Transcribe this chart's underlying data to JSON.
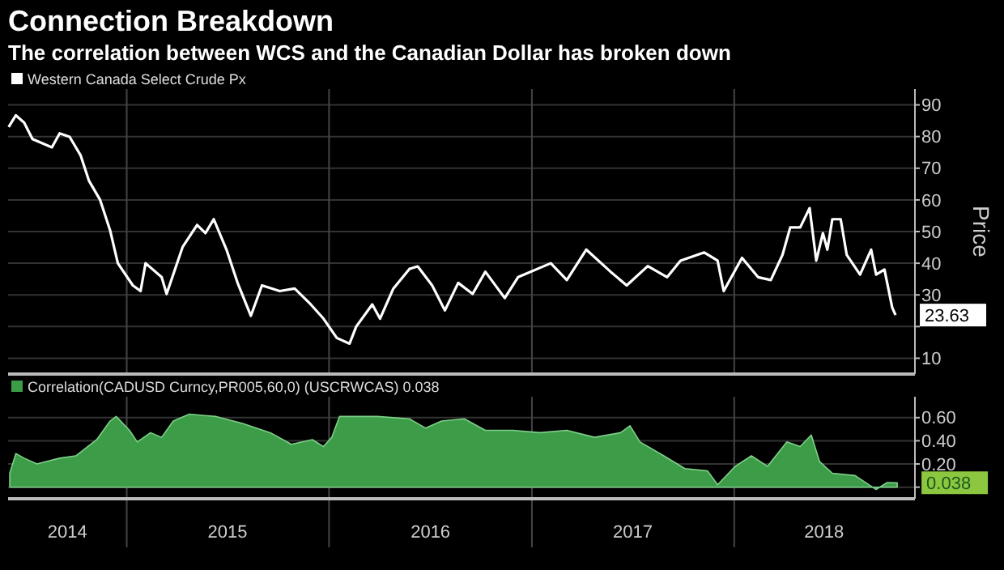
{
  "chart_data": [
    {
      "type": "line",
      "title": "Connection Breakdown",
      "subtitle": "The correlation between WCS and the Canadian Dollar has broken down",
      "ylabel": "Price",
      "legend": "top left",
      "grid": true,
      "tick_labels": "y",
      "xlim": [
        "2014-06-01",
        "2018-11-23"
      ],
      "ylim": [
        5,
        95
      ],
      "yticks": [
        10,
        {
          "value": 20,
          "label": null
        },
        30,
        40,
        50,
        60,
        70,
        80,
        90
      ],
      "xticks": [
        {
          "value": "2015-01-01",
          "label": null
        },
        {
          "value": "2016-01-01",
          "label": null
        },
        {
          "value": "2017-01-01",
          "label": null
        },
        {
          "value": "2018-01-01",
          "label": null
        }
      ],
      "series": [
        {
          "name": "Western Canada Select Crude Px",
          "color": "#ffffff",
          "x": [
            "2014-06-02",
            "2014-06-15",
            "2014-06-30",
            "2014-07-15",
            "2014-08-19",
            "2014-09-02",
            "2014-09-20",
            "2014-10-10",
            "2014-10-25",
            "2014-11-14",
            "2014-12-02",
            "2014-12-16",
            "2015-01-12",
            "2015-01-26",
            "2015-02-04",
            "2015-03-05",
            "2015-03-14",
            "2015-04-12",
            "2015-05-08",
            "2015-05-23",
            "2015-06-07",
            "2015-06-30",
            "2015-07-20",
            "2015-08-13",
            "2015-09-02",
            "2015-10-04",
            "2015-10-31",
            "2015-11-29",
            "2015-12-22",
            "2016-01-15",
            "2016-02-07",
            "2016-02-19",
            "2016-03-19",
            "2016-04-02",
            "2016-04-26",
            "2016-05-25",
            "2016-06-09",
            "2016-07-05",
            "2016-07-28",
            "2016-08-21",
            "2016-09-16",
            "2016-10-09",
            "2016-11-13",
            "2016-12-07",
            "2017-02-04",
            "2017-03-05",
            "2017-04-09",
            "2017-05-23",
            "2017-06-21",
            "2017-07-29",
            "2017-09-02",
            "2017-09-26",
            "2017-11-08",
            "2017-12-02",
            "2017-12-13",
            "2018-01-15",
            "2018-02-13",
            "2018-03-08",
            "2018-03-29",
            "2018-04-12",
            "2018-04-30",
            "2018-05-17",
            "2018-05-29",
            "2018-06-10",
            "2018-06-18",
            "2018-06-27",
            "2018-07-12",
            "2018-07-23",
            "2018-08-16",
            "2018-09-05",
            "2018-09-14",
            "2018-09-29",
            "2018-10-13",
            "2018-10-19"
          ],
          "values": [
            83,
            86.7,
            84.4,
            79.2,
            76.6,
            81,
            79.9,
            74,
            66,
            60,
            50.4,
            40,
            33,
            31.2,
            40,
            35.6,
            30.3,
            45.2,
            52.1,
            49.5,
            53.9,
            44.3,
            33.8,
            23.4,
            33,
            31.2,
            32,
            27,
            22.5,
            16.4,
            14.6,
            20,
            27,
            22.5,
            32,
            38.2,
            39,
            33,
            25.1,
            33.8,
            30.3,
            37.3,
            29,
            35.6,
            40,
            34.7,
            44.3,
            37.3,
            33,
            39.1,
            35.6,
            40.8,
            43.4,
            40.8,
            31.2,
            41.7,
            35.6,
            34.7,
            42.6,
            51.3,
            51.3,
            57.4,
            40.8,
            49.5,
            44.3,
            53.9,
            53.9,
            42.6,
            36.4,
            44.3,
            36.4,
            38,
            26,
            23.63
          ]
        }
      ],
      "annotations": [
        {
          "text": "23.63",
          "x": "2018-10-19",
          "y": 23.63
        }
      ]
    },
    {
      "type": "area",
      "legend": "top left",
      "grid": true,
      "xlim": [
        "2014-06-01",
        "2018-11-23"
      ],
      "ylim": [
        -0.1,
        0.78
      ],
      "yticks": [
        {
          "value": 0,
          "label": null
        },
        {
          "value": 0.2,
          "label": "0.20"
        },
        {
          "value": 0.4,
          "label": "0.40"
        },
        {
          "value": 0.6,
          "label": "0.60"
        }
      ],
      "xticks": [
        {
          "value": "2014-09-16",
          "label": "2014"
        },
        {
          "value": "2015-01-01",
          "label": null
        },
        {
          "value": "2015-07-02",
          "label": "2015"
        },
        {
          "value": "2016-01-01",
          "label": null
        },
        {
          "value": "2016-07-02",
          "label": "2016"
        },
        {
          "value": "2017-01-01",
          "label": null
        },
        {
          "value": "2017-07-02",
          "label": "2017"
        },
        {
          "value": "2018-01-01",
          "label": null
        },
        {
          "value": "2018-06-12",
          "label": "2018"
        }
      ],
      "series": [
        {
          "name": "Correlation(CADUSD Curncy,PR005,60,0) (USCRWCAS) 0.038",
          "color": "#3c9c48",
          "x": [
            "2014-06-04",
            "2014-06-15",
            "2014-06-30",
            "2014-07-23",
            "2014-09-02",
            "2014-10-01",
            "2014-11-08",
            "2014-12-02",
            "2014-12-13",
            "2015-01-06",
            "2015-01-20",
            "2015-02-13",
            "2015-03-05",
            "2015-03-26",
            "2015-04-24",
            "2015-06-10",
            "2015-07-29",
            "2015-09-17",
            "2015-10-25",
            "2015-12-02",
            "2015-12-22",
            "2016-01-06",
            "2016-01-20",
            "2016-03-28",
            "2016-05-25",
            "2016-06-23",
            "2016-07-22",
            "2016-09-01",
            "2016-10-09",
            "2016-11-28",
            "2017-01-15",
            "2017-03-05",
            "2017-04-24",
            "2017-06-10",
            "2017-06-27",
            "2017-07-15",
            "2017-08-27",
            "2017-10-04",
            "2017-11-14",
            "2017-12-02",
            "2018-01-03",
            "2018-02-01",
            "2018-03-02",
            "2018-04-06",
            "2018-04-30",
            "2018-05-20",
            "2018-06-04",
            "2018-06-27",
            "2018-08-07",
            "2018-09-14",
            "2018-10-04",
            "2018-10-22"
          ],
          "values": [
            0.12,
            0.29,
            0.25,
            0.2,
            0.25,
            0.27,
            0.41,
            0.57,
            0.61,
            0.49,
            0.39,
            0.47,
            0.43,
            0.57,
            0.63,
            0.61,
            0.55,
            0.47,
            0.37,
            0.41,
            0.35,
            0.43,
            0.61,
            0.61,
            0.59,
            0.51,
            0.57,
            0.59,
            0.49,
            0.49,
            0.47,
            0.49,
            0.43,
            0.47,
            0.53,
            0.39,
            0.27,
            0.16,
            0.14,
            0.02,
            0.18,
            0.27,
            0.18,
            0.39,
            0.35,
            0.45,
            0.22,
            0.12,
            0.1,
            -0.02,
            0.04,
            0.038
          ]
        }
      ],
      "annotations": [
        {
          "text": "0.038",
          "x": "2018-10-22",
          "y": 0.038
        }
      ]
    }
  ]
}
